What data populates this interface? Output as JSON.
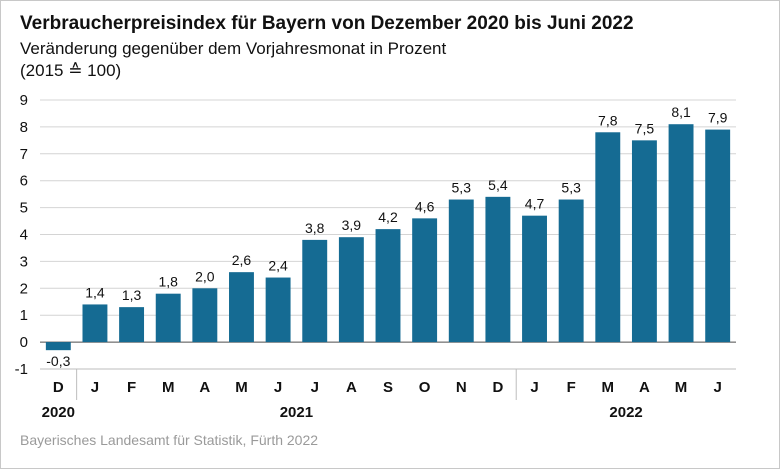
{
  "header": {
    "title": "Verbraucherpreisindex für Bayern von Dezember 2020 bis Juni 2022",
    "subtitle": "Veränderung gegenüber dem Vorjahresmonat in Prozent",
    "base_note": "(2015 ≙ 100)"
  },
  "footer": {
    "source": "Bayerisches Landesamt für Statistik, Fürth 2022"
  },
  "chart_data": {
    "type": "bar",
    "title": "Verbraucherpreisindex für Bayern von Dezember 2020 bis Juni 2022",
    "subtitle": "Veränderung gegenüber dem Vorjahresmonat in Prozent",
    "categories": [
      "D",
      "J",
      "F",
      "M",
      "A",
      "M",
      "J",
      "J",
      "A",
      "S",
      "O",
      "N",
      "D",
      "J",
      "F",
      "M",
      "A",
      "M",
      "J"
    ],
    "values": [
      -0.3,
      1.4,
      1.3,
      1.8,
      2.0,
      2.6,
      2.4,
      3.8,
      3.9,
      4.2,
      4.6,
      5.3,
      5.4,
      4.7,
      5.3,
      7.8,
      7.5,
      8.1,
      7.9
    ],
    "value_labels": [
      "-0,3",
      "1,4",
      "1,3",
      "1,8",
      "2,0",
      "2,6",
      "2,4",
      "3,8",
      "3,9",
      "4,2",
      "4,6",
      "5,3",
      "5,4",
      "4,7",
      "5,3",
      "7,8",
      "7,5",
      "8,1",
      "7,9"
    ],
    "year_groups": [
      {
        "label": "2020",
        "start": 0,
        "end": 0
      },
      {
        "label": "2021",
        "start": 1,
        "end": 12
      },
      {
        "label": "2022",
        "start": 13,
        "end": 18
      }
    ],
    "yticks": [
      -1,
      0,
      1,
      2,
      3,
      4,
      5,
      6,
      7,
      8,
      9
    ],
    "ylim": [
      -1,
      9
    ],
    "xlabel": "",
    "ylabel": "",
    "grid": true,
    "bar_color": "#156b93",
    "grid_color": "#d4d4d4"
  }
}
